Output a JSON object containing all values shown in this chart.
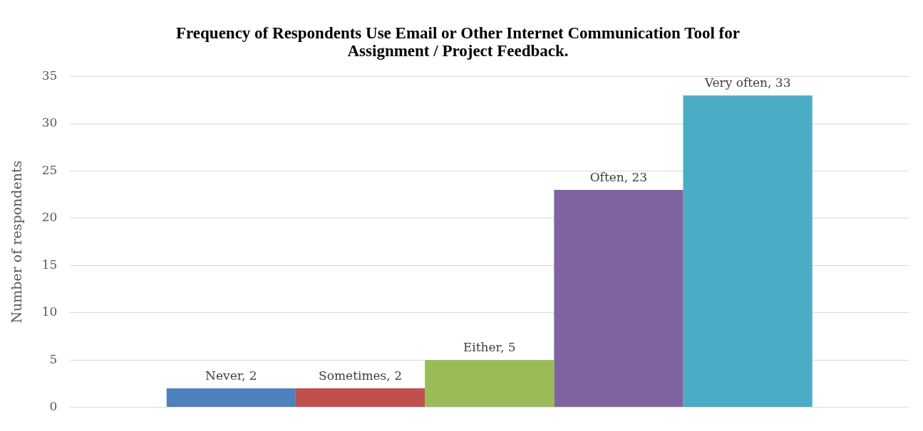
{
  "chart_data": {
    "type": "bar",
    "title": "Frequency of Respondents Use Email or Other Internet Communication Tool for Assignment / Project Feedback.",
    "ylabel": "Number of respondents",
    "categories": [
      null
    ],
    "series": [
      {
        "name": "Never,",
        "color": "#4f81bd",
        "values": [
          2
        ]
      },
      {
        "name": "Sometimes,",
        "color": "#c0504d",
        "values": [
          2
        ]
      },
      {
        "name": "Either,",
        "color": "#9bbb59",
        "values": [
          5
        ]
      },
      {
        "name": "Often,",
        "color": "#8064a2",
        "values": [
          23
        ]
      },
      {
        "name": "Very often,",
        "color": "#4bacc6",
        "values": [
          33
        ]
      }
    ],
    "ylim": [
      0,
      35
    ],
    "yticks": [
      0,
      5,
      10,
      15,
      20,
      25,
      30,
      35
    ],
    "grid": "y",
    "legend": false,
    "data_labels": true
  }
}
